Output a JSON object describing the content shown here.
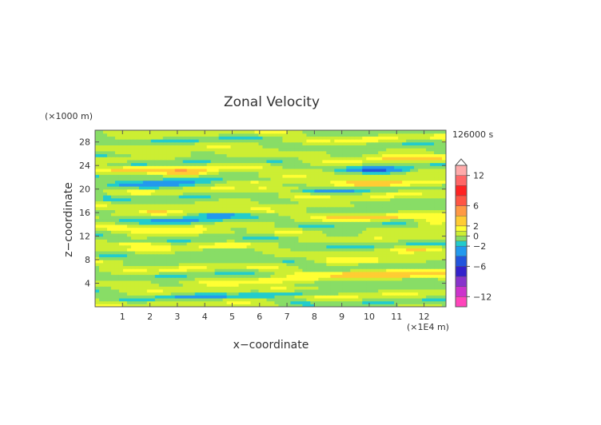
{
  "chart_data": {
    "type": "heatmap",
    "title": "Zonal Velocity",
    "xlabel": "x−coordinate",
    "ylabel": "z−coordinate",
    "x_unit": "(×1E4 m)",
    "y_unit": "(×1000 m)",
    "time_label": "126000 s",
    "xlim": [
      0,
      12.8
    ],
    "ylim": [
      0,
      30
    ],
    "x_ticks": [
      1,
      2,
      3,
      4,
      5,
      6,
      7,
      8,
      9,
      10,
      11,
      12
    ],
    "x_tick_labels": [
      "1",
      "2",
      "3",
      "4",
      "5",
      "6",
      "7",
      "8",
      "9",
      "10",
      "11",
      "12"
    ],
    "y_ticks": [
      4,
      8,
      12,
      16,
      20,
      24,
      28
    ],
    "y_tick_labels": [
      "4",
      "8",
      "12",
      "16",
      "20",
      "24",
      "28"
    ],
    "colorbar": {
      "levels": [
        -14,
        -12,
        -10,
        -8,
        -6,
        -4,
        -2,
        -1,
        0,
        1,
        2,
        4,
        6,
        8,
        10,
        12,
        14
      ],
      "colors": [
        "#ff44bb",
        "#cc33cc",
        "#8833cc",
        "#3322cc",
        "#2255dd",
        "#2299ee",
        "#22cccc",
        "#88dd66",
        "#ccee33",
        "#ffff33",
        "#ffcc33",
        "#ff9944",
        "#ff5544",
        "#ff2222",
        "#ff6666",
        "#ffaaaa"
      ],
      "tick_values": [
        12,
        6,
        2,
        0,
        -2,
        -6,
        -12
      ],
      "tick_labels": [
        "12",
        "6",
        "2",
        "0",
        "−2",
        "−6",
        "−12"
      ]
    },
    "features": [
      {
        "x": 1.8,
        "z": 23.4,
        "sx": 1.2,
        "sz": 0.5,
        "v": 2.2
      },
      {
        "x": 3.4,
        "z": 23.0,
        "sx": 1.0,
        "sz": 0.6,
        "v": 3.0
      },
      {
        "x": 1.6,
        "z": 20.8,
        "sx": 1.8,
        "sz": 0.6,
        "v": -2.5
      },
      {
        "x": 3.8,
        "z": 21.5,
        "sx": 1.3,
        "sz": 0.5,
        "v": -2.0
      },
      {
        "x": 10.3,
        "z": 23.2,
        "sx": 1.1,
        "sz": 0.5,
        "v": -4.0
      },
      {
        "x": 10.6,
        "z": 21.0,
        "sx": 1.9,
        "sz": 0.6,
        "v": 2.8
      },
      {
        "x": 11.5,
        "z": 25.4,
        "sx": 1.5,
        "sz": 0.5,
        "v": 2.4
      },
      {
        "x": 7.8,
        "z": 23.2,
        "sx": 0.8,
        "sz": 0.4,
        "v": 2.0
      },
      {
        "x": 5.8,
        "z": 21.3,
        "sx": 1.5,
        "sz": 0.4,
        "v": 2.0
      },
      {
        "x": 0.8,
        "z": 25.0,
        "sx": 0.8,
        "sz": 0.3,
        "v": 2.0
      },
      {
        "x": 8.5,
        "z": 19.6,
        "sx": 1.3,
        "sz": 0.3,
        "v": -1.8
      },
      {
        "x": 2.2,
        "z": 16.2,
        "sx": 0.5,
        "sz": 0.3,
        "v": 2.5
      },
      {
        "x": 3.3,
        "z": 14.5,
        "sx": 1.4,
        "sz": 0.4,
        "v": -2.3
      },
      {
        "x": 4.5,
        "z": 15.6,
        "sx": 1.0,
        "sz": 0.4,
        "v": -2.0
      },
      {
        "x": 2.8,
        "z": 13.0,
        "sx": 1.6,
        "sz": 0.4,
        "v": 2.3
      },
      {
        "x": 9.8,
        "z": 15.3,
        "sx": 1.5,
        "sz": 0.4,
        "v": 2.5
      },
      {
        "x": 12.4,
        "z": 14.5,
        "sx": 0.7,
        "sz": 0.5,
        "v": 2.5
      },
      {
        "x": 1.5,
        "z": 10.8,
        "sx": 1.0,
        "sz": 0.4,
        "v": 2.0
      },
      {
        "x": 9.6,
        "z": 8.0,
        "sx": 1.6,
        "sz": 0.4,
        "v": 1.8
      },
      {
        "x": 10.8,
        "z": 5.5,
        "sx": 2.4,
        "sz": 0.7,
        "v": 2.8
      },
      {
        "x": 6.8,
        "z": 4.5,
        "sx": 1.3,
        "sz": 0.5,
        "v": 2.4
      },
      {
        "x": 4.6,
        "z": 4.0,
        "sx": 0.8,
        "sz": 0.3,
        "v": 2.0
      },
      {
        "x": 4.0,
        "z": 1.7,
        "sx": 1.4,
        "sz": 0.4,
        "v": -1.8
      },
      {
        "x": 7.6,
        "z": 2.4,
        "sx": 1.0,
        "sz": 0.4,
        "v": -1.6
      },
      {
        "x": 7.5,
        "z": 17.4,
        "sx": 1.4,
        "sz": 0.4,
        "v": 2.0
      },
      {
        "x": 11.7,
        "z": 10.0,
        "sx": 1.0,
        "sz": 0.4,
        "v": 1.8
      }
    ]
  }
}
